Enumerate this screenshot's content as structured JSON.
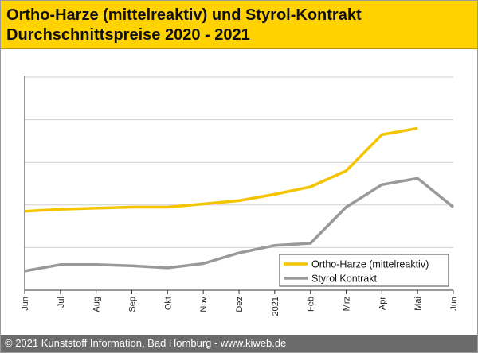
{
  "header": {
    "title_line1": "Ortho-Harze (mittelreaktiv) und Styrol-Kontrakt",
    "title_line2": "Durchschnittspreise 2020 - 2021"
  },
  "footer": {
    "text": "© 2021 Kunststoff Information, Bad Homburg - www.kiweb.de"
  },
  "colors": {
    "header_bg": "#ffd200",
    "ortho": "#f5c400",
    "styrol": "#999999",
    "grid": "#cfcfcf",
    "footer_bg": "#6b6b6b"
  },
  "chart_data": {
    "type": "line",
    "title": "Ortho-Harze (mittelreaktiv) und Styrol-Kontrakt Durchschnittspreise 2020 - 2021",
    "xlabel": "",
    "ylabel": "",
    "categories": [
      "Jun",
      "Jul",
      "Aug",
      "Sep",
      "Okt",
      "Nov",
      "Dez",
      "2021",
      "Feb",
      "Mrz",
      "Apr",
      "Mai",
      "Jun"
    ],
    "ylim": [
      0,
      100
    ],
    "y_ticks": [
      0,
      20,
      40,
      60,
      80,
      100
    ],
    "y_tick_labels_shown": false,
    "grid": true,
    "legend_position": "bottom-right",
    "series": [
      {
        "name": "Ortho-Harze (mittelreaktiv)",
        "color": "#f5c400",
        "values": [
          37,
          38,
          38.5,
          39,
          39,
          40.5,
          42,
          45,
          48.5,
          56,
          73,
          76,
          null
        ]
      },
      {
        "name": "Styrol Kontrakt",
        "color": "#999999",
        "values": [
          9,
          12,
          12,
          11.5,
          10.5,
          12.5,
          17.5,
          21,
          22,
          39,
          49.5,
          52.5,
          39
        ]
      }
    ]
  }
}
